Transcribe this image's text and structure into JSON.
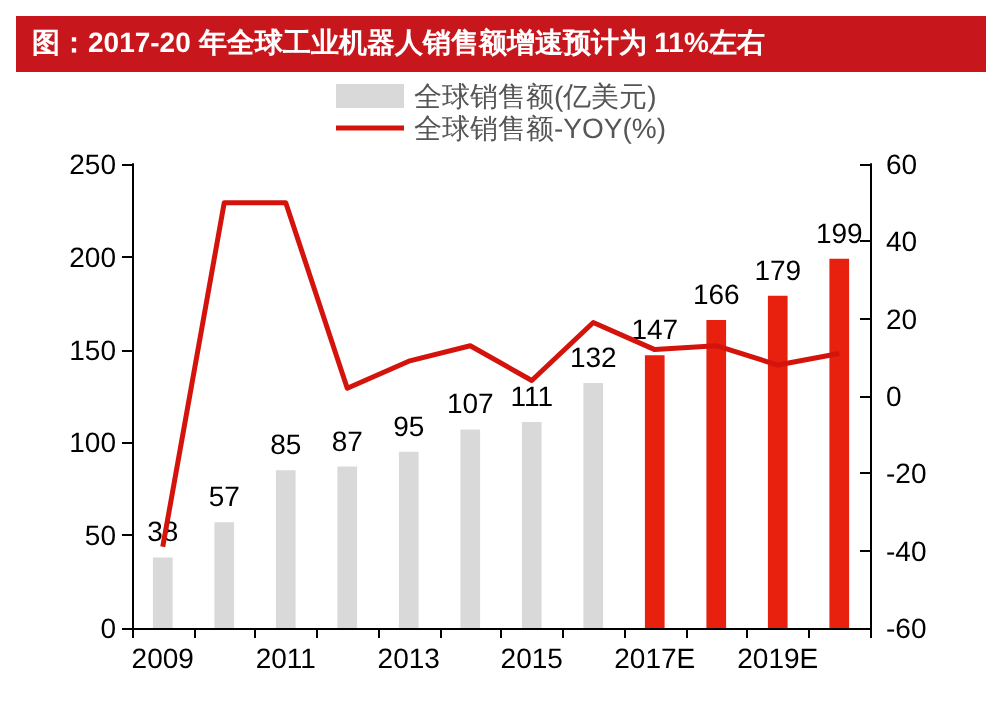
{
  "chart_data": {
    "type": "bar",
    "title": "图：2017-20 年全球工业机器人销售额增速预计为 11%左右",
    "categories": [
      "2009",
      null,
      "2011",
      null,
      "2013",
      null,
      "2015",
      null,
      "2017E",
      null,
      "2019E",
      null
    ],
    "series": [
      {
        "name": "全球销售额(亿美元)",
        "value_labels": [
          "38",
          "57",
          "85",
          "87",
          "95",
          "107",
          "111",
          "132",
          "147",
          "166",
          "179",
          "199"
        ],
        "color": "#d9d9d9",
        "colors": [
          "#d9d9d9",
          "#d9d9d9",
          "#d9d9d9",
          "#d9d9d9",
          "#d9d9d9",
          "#d9d9d9",
          "#d9d9d9",
          "#d9d9d9",
          "#e8200e",
          "#e8200e",
          "#e8200e",
          "#e8200e"
        ],
        "values": [
          38,
          57,
          85,
          87,
          95,
          107,
          111,
          132,
          147,
          166,
          179,
          199
        ]
      },
      {
        "name": "全球销售额-YOY(%)",
        "type": "line",
        "axis": "y2",
        "color": "#d4140c",
        "values": [
          -39,
          50,
          50,
          2,
          9,
          13,
          4,
          19,
          12,
          13,
          8,
          11
        ]
      }
    ],
    "ylim": [
      0,
      250
    ],
    "yticks": [
      0,
      50,
      100,
      150,
      200,
      250
    ],
    "y2lim": [
      -60,
      60
    ],
    "y2ticks": [
      -60,
      -40,
      -20,
      0,
      20,
      40,
      60
    ],
    "grid": false,
    "legend": "top",
    "marker": "none",
    "line_style": "solid"
  }
}
